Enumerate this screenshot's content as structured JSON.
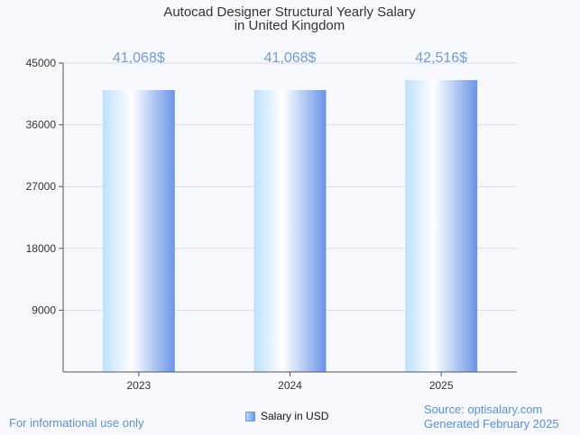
{
  "chart_data": {
    "type": "bar",
    "title_line1": "Autocad Designer Structural Yearly Salary",
    "title_line2": "in United Kingdom",
    "categories": [
      "2023",
      "2024",
      "2025"
    ],
    "series": [
      {
        "name": "Salary in USD",
        "values": [
          41068,
          41068,
          42516
        ]
      }
    ],
    "data_labels": [
      "41,068$",
      "41,068$",
      "42,516$"
    ],
    "y_ticks": [
      9000,
      18000,
      27000,
      36000,
      45000
    ],
    "ylim": [
      0,
      45000
    ],
    "grid": true,
    "legend_position": "bottom-center",
    "colors": {
      "bar_light": "#c8e6ff",
      "bar_mid": "#ffffff",
      "bar_dark": "#6a94e8",
      "label": "#6e9fd8"
    }
  },
  "footer": {
    "disclaimer": "For informational use only",
    "source": "Source: optisalary.com",
    "generated": "Generated February 2025"
  }
}
